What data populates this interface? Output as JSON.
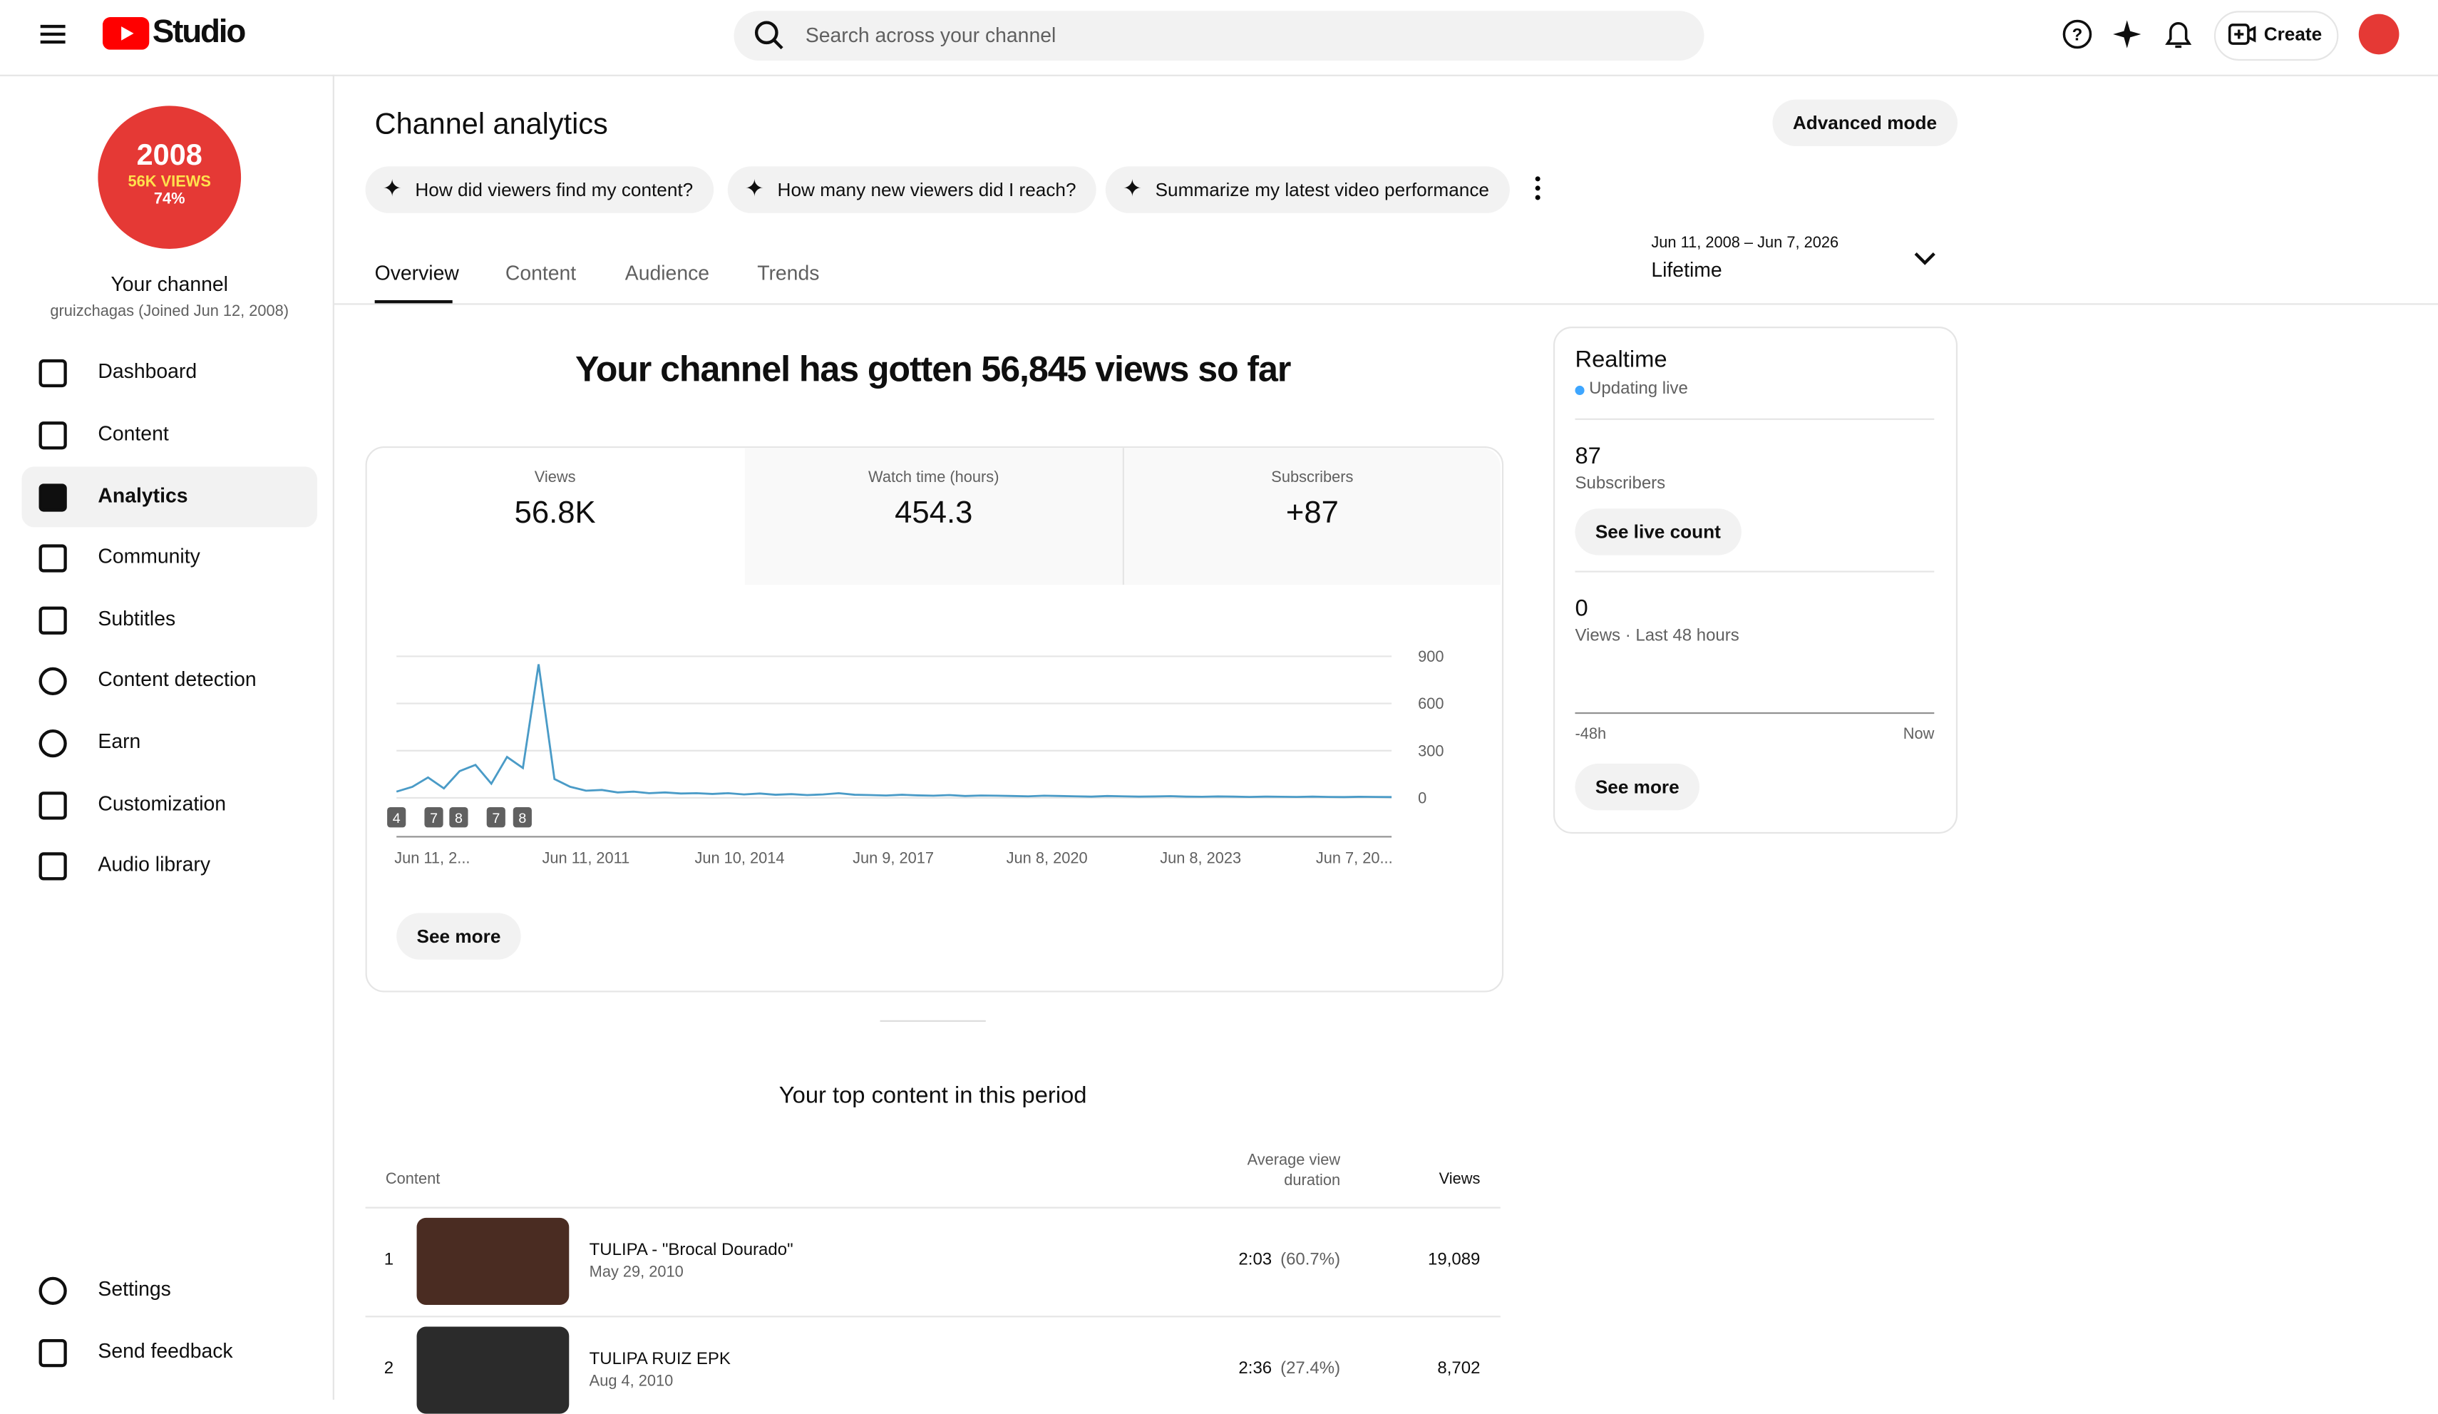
{
  "header": {
    "logo": "Studio",
    "search_placeholder": "Search across your channel",
    "create": "Create"
  },
  "sidebar": {
    "avatar": [
      "2008",
      "56K VIEWS",
      "74%"
    ],
    "channel_name": "Your channel",
    "channel_meta": "gruizchagas (Joined Jun 12, 2008)",
    "nav": [
      "Dashboard",
      "Content",
      "Analytics",
      "Community",
      "Subtitles",
      "Content detection",
      "Earn",
      "Customization",
      "Audio library"
    ],
    "footer_nav": [
      "Settings",
      "Send feedback"
    ]
  },
  "main": {
    "title": "Channel analytics",
    "advanced_mode": "Advanced mode",
    "suggestions": [
      "How did viewers find my content?",
      "How many new viewers did I reach?",
      "Summarize my latest video performance"
    ],
    "tabs": [
      "Overview",
      "Content",
      "Audience",
      "Trends"
    ],
    "date_range": "Jun 11, 2008 – Jun 7, 2026",
    "date_preset": "Lifetime"
  },
  "overview": {
    "headline": "Your channel has gotten 56,845 views so far",
    "metrics": [
      {
        "label": "Views",
        "value": "56.8K"
      },
      {
        "label": "Watch time (hours)",
        "value": "454.3"
      },
      {
        "label": "Subscribers",
        "value": "+87"
      }
    ],
    "see_more": "See more"
  },
  "views_chart": {
    "ylim": [
      0,
      900
    ],
    "yticks": [
      0,
      300,
      600,
      900
    ],
    "x_labels": [
      "Jun 11, 2...",
      "Jun 11, 2011",
      "Jun 10, 2014",
      "Jun 9, 2017",
      "Jun 8, 2020",
      "Jun 8, 2023",
      "Jun 7, 20..."
    ],
    "events": [
      "4",
      "7",
      "8",
      "7",
      "8"
    ],
    "color": "#4a9bc7",
    "values": [
      40,
      70,
      130,
      60,
      170,
      210,
      90,
      260,
      190,
      850,
      120,
      70,
      45,
      50,
      35,
      40,
      30,
      35,
      28,
      30,
      25,
      30,
      22,
      28,
      20,
      24,
      18,
      22,
      30,
      20,
      18,
      15,
      20,
      16,
      14,
      18,
      12,
      15,
      14,
      12,
      10,
      14,
      12,
      10,
      8,
      12,
      10,
      8,
      9,
      11,
      8,
      7,
      9,
      8,
      6,
      8,
      7,
      6,
      8,
      6,
      5,
      7,
      6,
      5
    ]
  },
  "realtime": {
    "title": "Realtime",
    "status": "Updating live",
    "subscribers": "87",
    "subscribers_label": "Subscribers",
    "see_live": "See live count",
    "views": "0",
    "views_label": "Views · Last 48 hours",
    "axis_start": "-48h",
    "axis_end": "Now",
    "see_more": "See more"
  },
  "top_content": {
    "title": "Your top content in this period",
    "columns": [
      "Content",
      "Average view duration",
      "Views"
    ],
    "rows": [
      {
        "rank": "1",
        "title": "TULIPA - \"Brocal Dourado\"",
        "date": "May 29, 2010",
        "duration": "2:03",
        "percent": "(60.7%)",
        "views": "19,089"
      },
      {
        "rank": "2",
        "title": "TULIPA RUIZ EPK",
        "date": "Aug 4, 2010",
        "duration": "2:36",
        "percent": "(27.4%)",
        "views": "8,702"
      }
    ]
  }
}
